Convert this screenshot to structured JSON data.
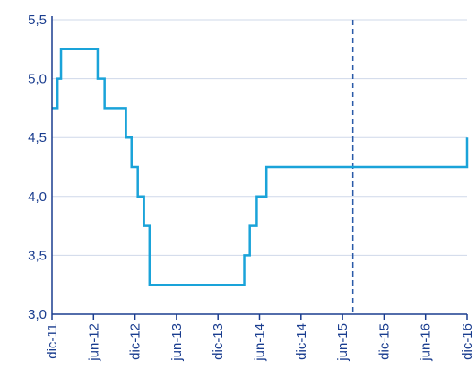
{
  "chart_data": {
    "type": "line",
    "step": true,
    "title": "",
    "xlabel": "",
    "ylabel": "",
    "ylim": [
      3.0,
      5.5
    ],
    "yticks": [
      "3,0",
      "3,5",
      "4,0",
      "4,5",
      "5,0",
      "5,5"
    ],
    "ytick_values": [
      3.0,
      3.5,
      4.0,
      4.5,
      5.0,
      5.5
    ],
    "xticks": [
      "dic-11",
      "jun-12",
      "dic-12",
      "jun-13",
      "dic-13",
      "jun-14",
      "dic-14",
      "jun-15",
      "dic-15",
      "jun-16",
      "dic-16"
    ],
    "xlim": [
      0,
      60
    ],
    "grid": "horizontal",
    "legend": "none",
    "series": [
      {
        "color": "#1aa3d9",
        "x": [
          0,
          0.8,
          1.3,
          6.6,
          7.6,
          10.7,
          11.5,
          12.4,
          13.3,
          14.1,
          14.9,
          27.8,
          28.6,
          29.6,
          31.0,
          60
        ],
        "values": [
          4.75,
          5.0,
          5.25,
          5.0,
          4.75,
          4.5,
          4.25,
          4.0,
          3.75,
          3.25,
          3.25,
          3.5,
          3.75,
          4.0,
          4.25,
          4.5
        ]
      }
    ],
    "vertical_marker": {
      "x": 43.5,
      "style": "dashed",
      "color": "#2a5aa8"
    }
  }
}
